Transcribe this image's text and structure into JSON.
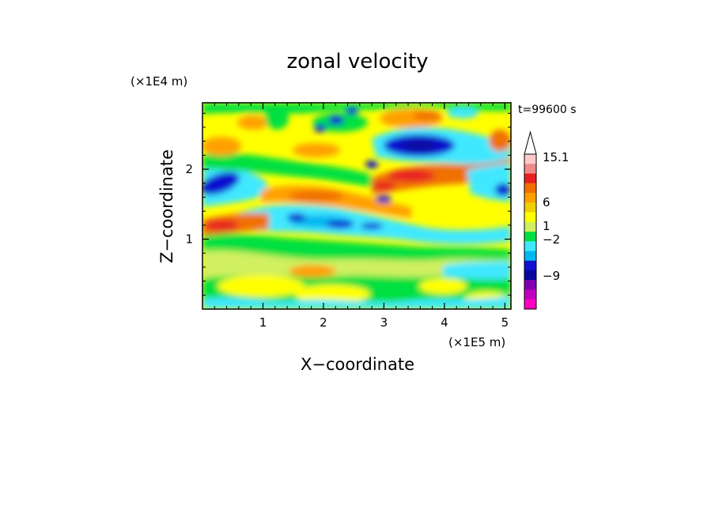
{
  "chart_data": {
    "type": "heatmap",
    "title": "zonal velocity",
    "xlabel": "X−coordinate",
    "ylabel": "Z−coordinate",
    "x_unit": "(×1E5 m)",
    "y_unit": "(×1E4 m)",
    "time_label": "t=99600 s",
    "xlim": [
      0,
      5.1
    ],
    "ylim": [
      0,
      2.95
    ],
    "x_ticks": [
      "1",
      "2",
      "3",
      "4",
      "5"
    ],
    "y_ticks": [
      "1",
      "2"
    ],
    "colorbar": {
      "labels": [
        "15.1",
        "6",
        "1",
        "−2",
        "−9"
      ],
      "colors_top_to_bottom": [
        "#ffc8c8",
        "#f08a8a",
        "#e82020",
        "#f07000",
        "#ffa000",
        "#f0d000",
        "#ffff00",
        "#d0f060",
        "#00e040",
        "#40e8ff",
        "#00b8f0",
        "#1010d0",
        "#0808a0",
        "#8000b0",
        "#c000c0",
        "#ff00c0"
      ]
    },
    "features": [
      {
        "type": "jet",
        "sign": "negative",
        "x": 3.75,
        "z": 2.35,
        "value": -9
      },
      {
        "type": "jet",
        "sign": "negative",
        "x": 0.2,
        "z": 1.75,
        "value": -6
      },
      {
        "type": "band",
        "sign": "positive",
        "x": 3.2,
        "z": 1.95,
        "value": 6
      },
      {
        "type": "band",
        "sign": "positive",
        "x": 0.5,
        "z": 1.2,
        "value": 5
      },
      {
        "type": "band",
        "sign": "negative",
        "x": 1.9,
        "z": 1.28,
        "value": -3
      },
      {
        "type": "band",
        "sign": "positive",
        "x": 4.8,
        "z": 2.5,
        "value": 6
      }
    ]
  }
}
